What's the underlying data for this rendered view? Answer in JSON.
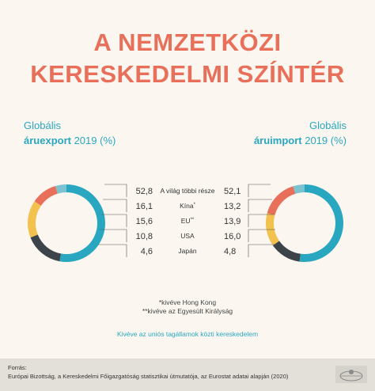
{
  "title_line1": "A NEMZETKÖZI",
  "title_line2": "KERESKEDELMI SZÍNTÉR",
  "left_heading": {
    "line1": "Globális",
    "bold": "áruexport",
    "rest": " 2019 (%)"
  },
  "right_heading": {
    "line1": "Globális",
    "bold": "áruimport",
    "rest": " 2019 (%)"
  },
  "chart_data": [
    {
      "type": "pie",
      "name": "áruexport 2019 (%)",
      "categories": [
        "A világ többi része",
        "Kína*",
        "EU**",
        "USA",
        "Japán"
      ],
      "values": [
        52.8,
        16.1,
        15.6,
        10.8,
        4.6
      ],
      "value_labels": [
        "52,8",
        "16,1",
        "15,6",
        "10,8",
        "4,6"
      ]
    },
    {
      "type": "pie",
      "name": "áruimport 2019 (%)",
      "categories": [
        "A világ többi része",
        "Kína*",
        "EU**",
        "USA",
        "Japán"
      ],
      "values": [
        52.1,
        13.2,
        13.9,
        16.0,
        4.8
      ],
      "value_labels": [
        "52,1",
        "13,2",
        "13,9",
        "16,0",
        "4,8"
      ]
    }
  ],
  "category_labels": [
    "A világ többi része",
    "Kína",
    "EU",
    "USA",
    "Japán"
  ],
  "category_marks": [
    "",
    "*",
    "**",
    "",
    ""
  ],
  "colors": {
    "rest": "#2aa7c0",
    "china": "#3d4449",
    "eu": "#f2c14e",
    "usa": "#e8705a",
    "japan": "#7cc3d2",
    "title": "#e8705a",
    "accent": "#2aa7c0"
  },
  "footnotes": [
    "*kivéve Hong Kong",
    "**kivéve az Egyesült Királyság"
  ],
  "note": "Kivéve az uniós tagállamok közti kereskedelem",
  "source_label": "Forrás:",
  "source_text": "Európai Bizottság, a Kereskedelmi Főigazgatóság statisztikai útmutatója, az Eurostat adatai alapján (2020)"
}
